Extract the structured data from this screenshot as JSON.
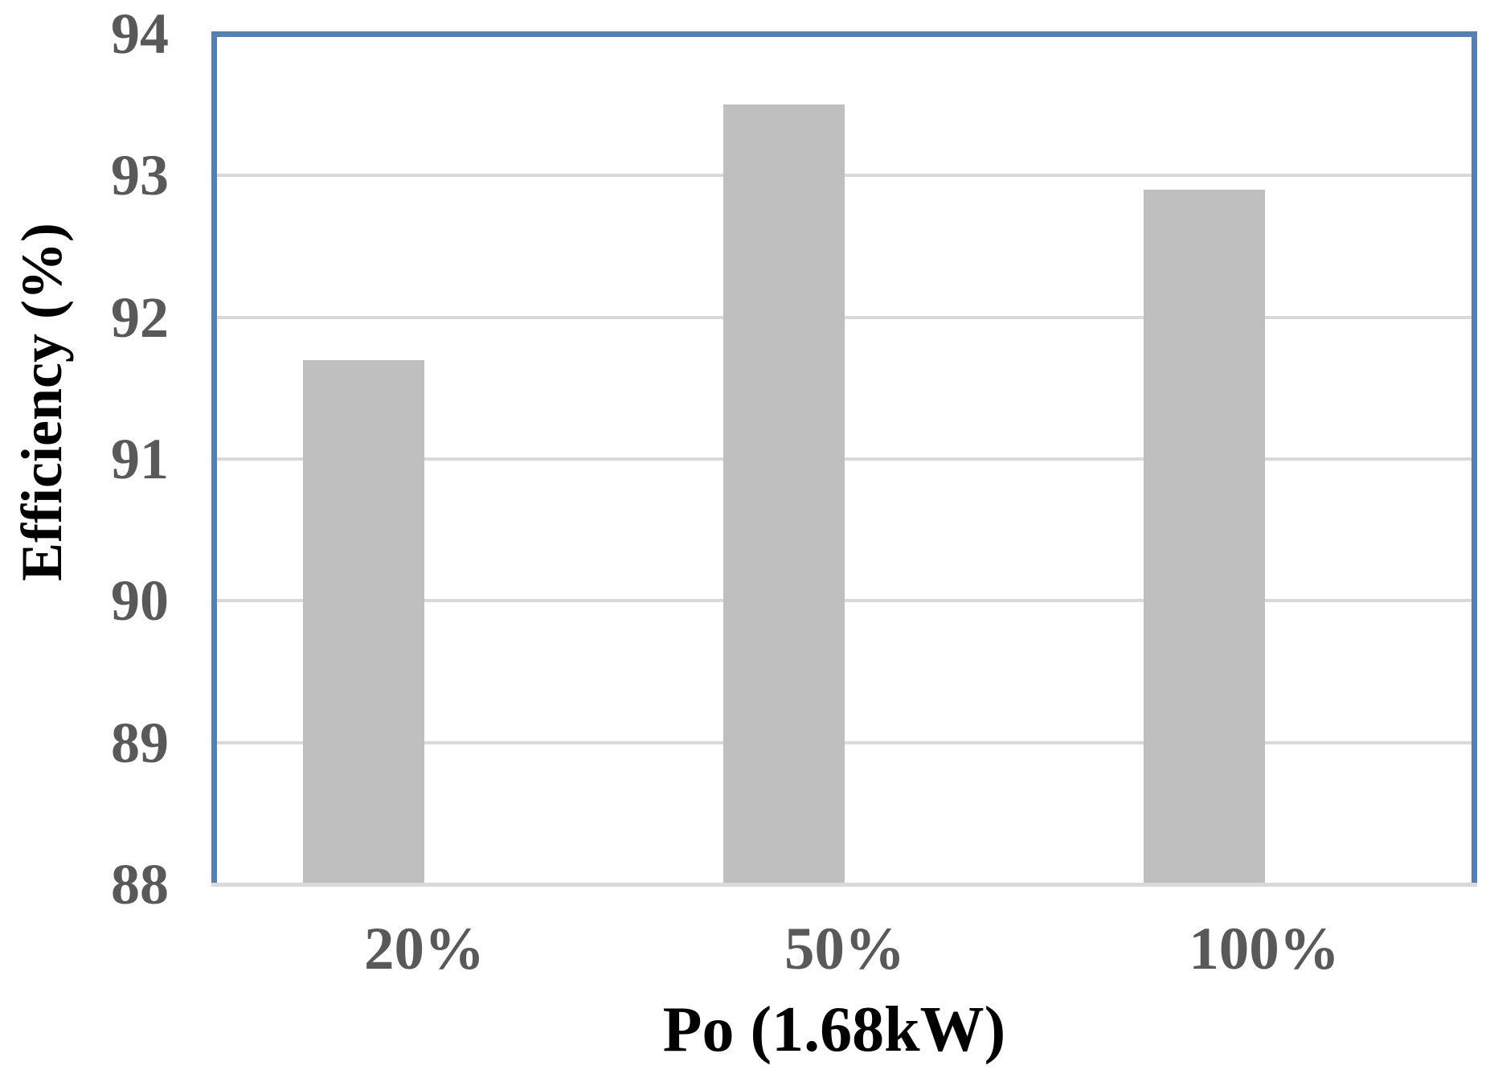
{
  "chart_data": {
    "type": "bar",
    "categories": [
      "20%",
      "50%",
      "100%"
    ],
    "values": [
      91.7,
      93.5,
      92.9
    ],
    "xlabel": "Po (1.68kW)",
    "ylabel": "Efficiency (%)",
    "ylim": [
      88,
      94
    ],
    "yticks": [
      88,
      89,
      90,
      91,
      92,
      93,
      94
    ],
    "grid": true,
    "legend": "none",
    "colors": {
      "bar_fill": "#bfbfbf",
      "plot_border": "#4f81bd",
      "gridline": "#d9d9d9",
      "axis_line": "#d9d9d9",
      "tick_label": "#595959",
      "axis_title": "#000000",
      "background": "#ffffff"
    }
  }
}
